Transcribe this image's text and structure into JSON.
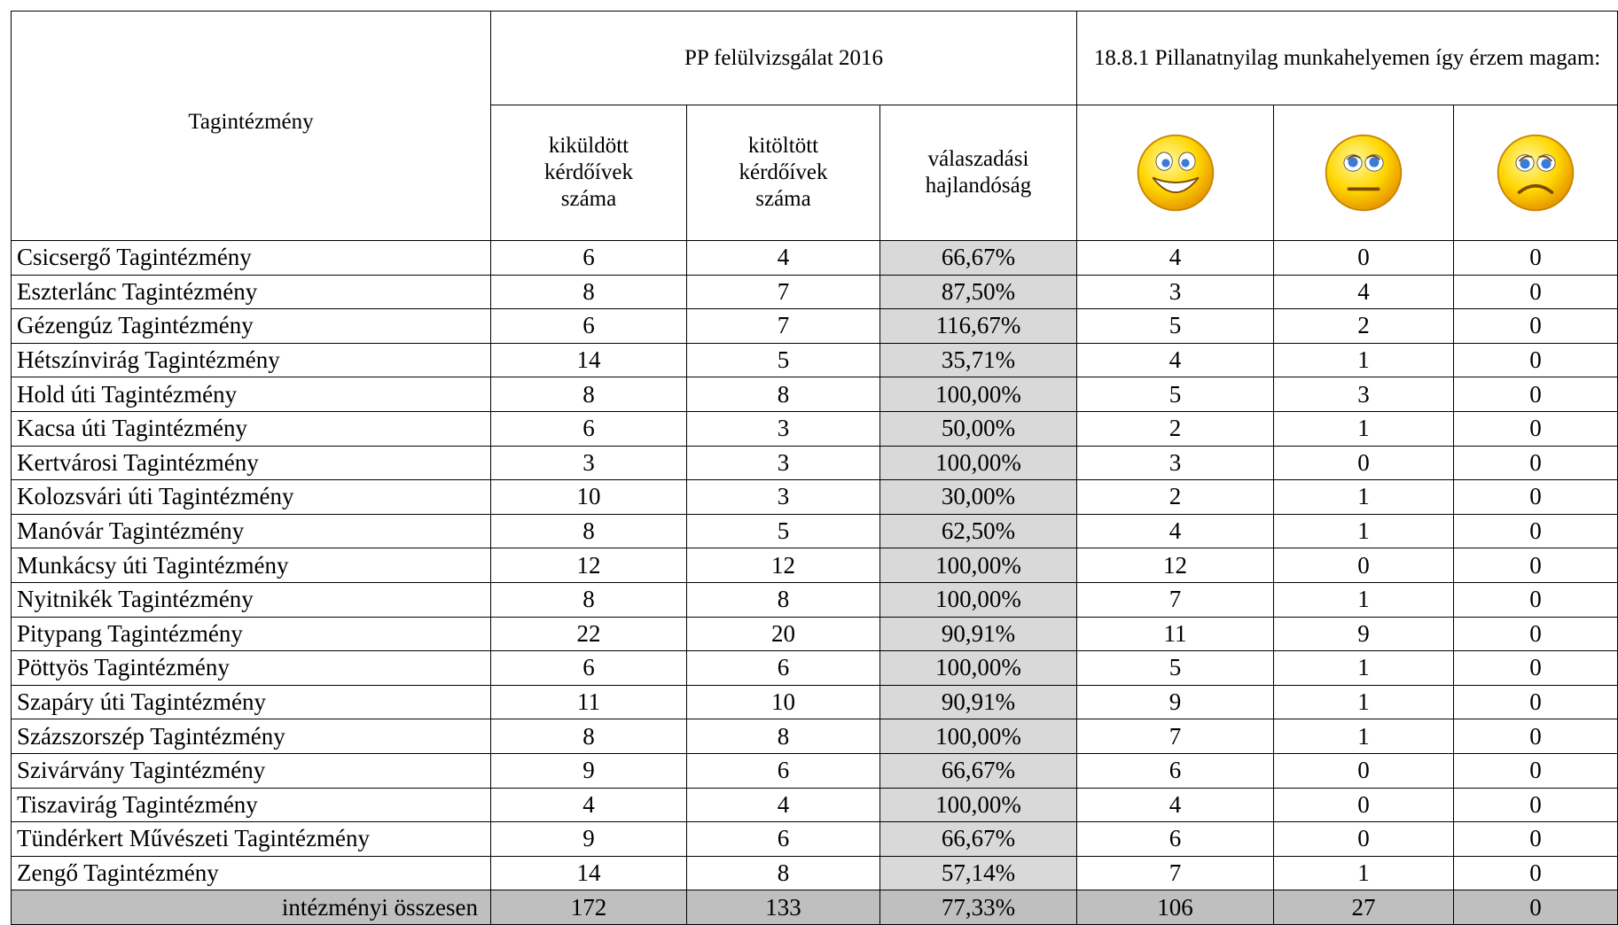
{
  "table": {
    "header": {
      "row_label": "Tagintézmény",
      "group1": "PP felülvizsgálat 2016",
      "group2": "18.8.1 Pillanatnyilag munkahelyemen így érzem magam:",
      "columns": [
        "kiküldött\nkérdőívek\nszáma",
        "kitöltött\nkérdőívek\nszáma",
        "válaszadási\nhajlandóság"
      ]
    },
    "rows": [
      [
        "Csicsergő Tagintézmény",
        "6",
        "4",
        "66,67%",
        "4",
        "0",
        "0"
      ],
      [
        "Eszterlánc Tagintézmény",
        "8",
        "7",
        "87,50%",
        "3",
        "4",
        "0"
      ],
      [
        "Gézengúz Tagintézmény",
        "6",
        "7",
        "116,67%",
        "5",
        "2",
        "0"
      ],
      [
        "Hétszínvirág Tagintézmény",
        "14",
        "5",
        "35,71%",
        "4",
        "1",
        "0"
      ],
      [
        "Hold úti Tagintézmény",
        "8",
        "8",
        "100,00%",
        "5",
        "3",
        "0"
      ],
      [
        "Kacsa úti Tagintézmény",
        "6",
        "3",
        "50,00%",
        "2",
        "1",
        "0"
      ],
      [
        "Kertvárosi Tagintézmény",
        "3",
        "3",
        "100,00%",
        "3",
        "0",
        "0"
      ],
      [
        "Kolozsvári úti Tagintézmény",
        "10",
        "3",
        "30,00%",
        "2",
        "1",
        "0"
      ],
      [
        "Manóvár Tagintézmény",
        "8",
        "5",
        "62,50%",
        "4",
        "1",
        "0"
      ],
      [
        "Munkácsy úti Tagintézmény",
        "12",
        "12",
        "100,00%",
        "12",
        "0",
        "0"
      ],
      [
        "Nyitnikék Tagintézmény",
        "8",
        "8",
        "100,00%",
        "7",
        "1",
        "0"
      ],
      [
        "Pitypang Tagintézmény",
        "22",
        "20",
        "90,91%",
        "11",
        "9",
        "0"
      ],
      [
        "Pöttyös Tagintézmény",
        "6",
        "6",
        "100,00%",
        "5",
        "1",
        "0"
      ],
      [
        "Szapáry úti Tagintézmény",
        "11",
        "10",
        "90,91%",
        "9",
        "1",
        "0"
      ],
      [
        "Százszorszép Tagintézmény",
        "8",
        "8",
        "100,00%",
        "7",
        "1",
        "0"
      ],
      [
        "Szivárvány Tagintézmény",
        "9",
        "6",
        "66,67%",
        "6",
        "0",
        "0"
      ],
      [
        "Tiszavirág Tagintézmény",
        "4",
        "4",
        "100,00%",
        "4",
        "0",
        "0"
      ],
      [
        "Tündérkert Művészeti Tagintézmény",
        "9",
        "6",
        "66,67%",
        "6",
        "0",
        "0"
      ],
      [
        "Zengő Tagintézmény",
        "14",
        "8",
        "57,14%",
        "7",
        "1",
        "0"
      ]
    ],
    "total": [
      "intézményi összesen",
      "172",
      "133",
      "77,33%",
      "106",
      "27",
      "0"
    ]
  }
}
